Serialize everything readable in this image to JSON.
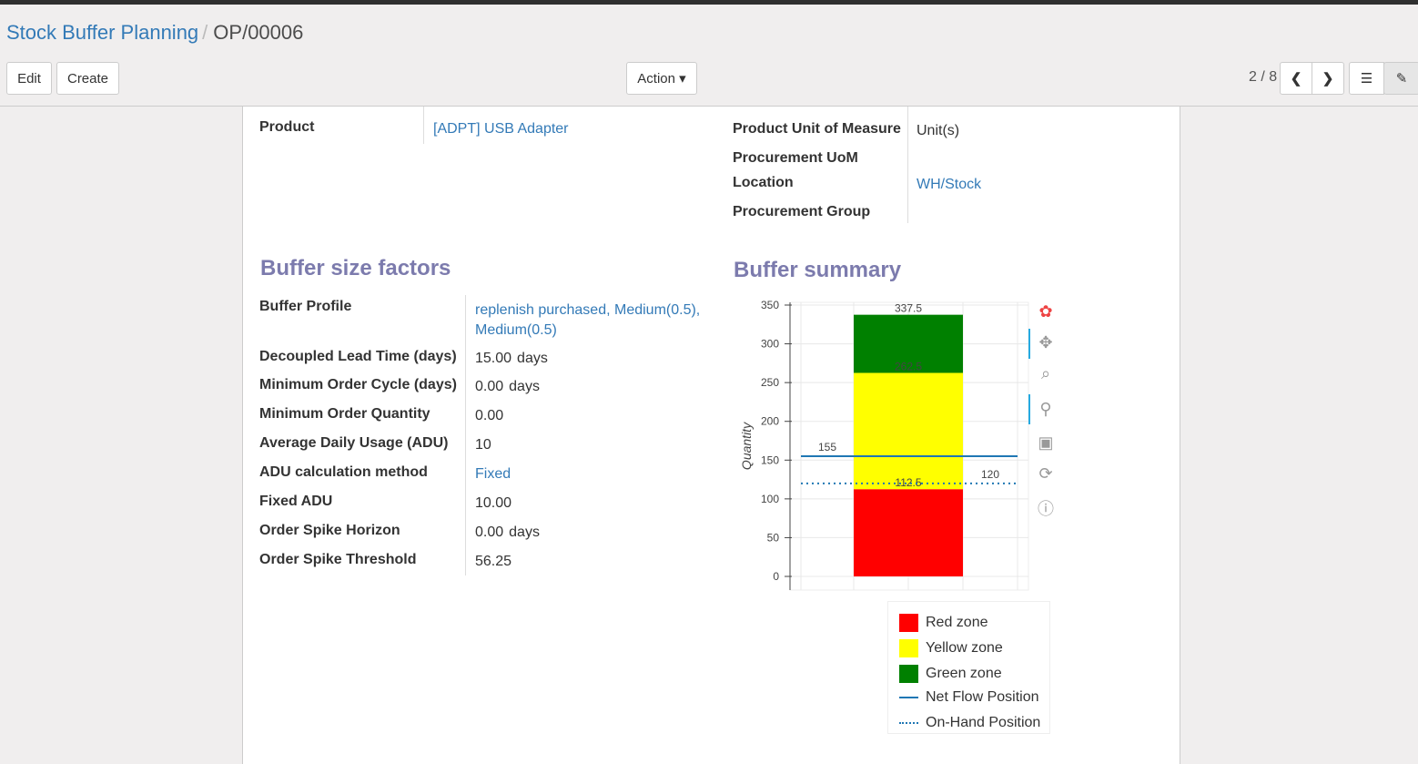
{
  "breadcrumb": {
    "parent": "Stock Buffer Planning",
    "current": "OP/00006"
  },
  "toolbar": {
    "edit": "Edit",
    "create": "Create",
    "action": "Action ▾",
    "pager": "2 / 8"
  },
  "top_fields": {
    "product_label": "Product",
    "product_value": "[ADPT] USB Adapter",
    "uom_label": "Product Unit of Measure",
    "uom_value": "Unit(s)",
    "proc_uom_label": "Procurement UoM",
    "location_label": "Location",
    "location_value": "WH/Stock",
    "proc_group_label": "Procurement Group"
  },
  "factors": {
    "title": "Buffer size factors",
    "rows": [
      {
        "label": "Buffer Profile",
        "value": "replenish purchased, Medium(0.5), Medium(0.5)",
        "unit": "",
        "link": true
      },
      {
        "label": "Decoupled Lead Time (days)",
        "value": "15.00",
        "unit": "days"
      },
      {
        "label": "Minimum Order Cycle (days)",
        "value": "0.00",
        "unit": "days"
      },
      {
        "label": "Minimum Order Quantity",
        "value": "0.00",
        "unit": ""
      },
      {
        "label": "Average Daily Usage (ADU)",
        "value": "10",
        "unit": ""
      },
      {
        "label": "ADU calculation method",
        "value": "Fixed",
        "unit": "",
        "link": true
      },
      {
        "label": "Fixed ADU",
        "value": "10.00",
        "unit": ""
      },
      {
        "label": "Order Spike Horizon",
        "value": "0.00",
        "unit": "days"
      },
      {
        "label": "Order Spike Threshold",
        "value": "56.25",
        "unit": ""
      }
    ]
  },
  "summary": {
    "title": "Buffer summary"
  },
  "chart_data": {
    "type": "bar",
    "stacked": true,
    "ylabel": "Quantity",
    "ylim": [
      -17,
      355
    ],
    "yticks": [
      0,
      50,
      100,
      150,
      200,
      250,
      300,
      350
    ],
    "grid": true,
    "series": [
      {
        "name": "Red zone",
        "from": 0,
        "to": 112.5,
        "color": "#ff0000"
      },
      {
        "name": "Yellow zone",
        "from": 112.5,
        "to": 262.5,
        "color": "#ffff00"
      },
      {
        "name": "Green zone",
        "from": 262.5,
        "to": 337.5,
        "color": "#008000"
      }
    ],
    "bar_labels": [
      "112.5",
      "262.5",
      "337.5"
    ],
    "lines": [
      {
        "name": "Net Flow Position",
        "value": 155,
        "label": "155",
        "style": "solid",
        "color": "#1f77b4"
      },
      {
        "name": "On-Hand Position",
        "value": 120,
        "label": "120",
        "style": "dotted",
        "color": "#1f77b4"
      }
    ],
    "legend_position": "bottom"
  }
}
